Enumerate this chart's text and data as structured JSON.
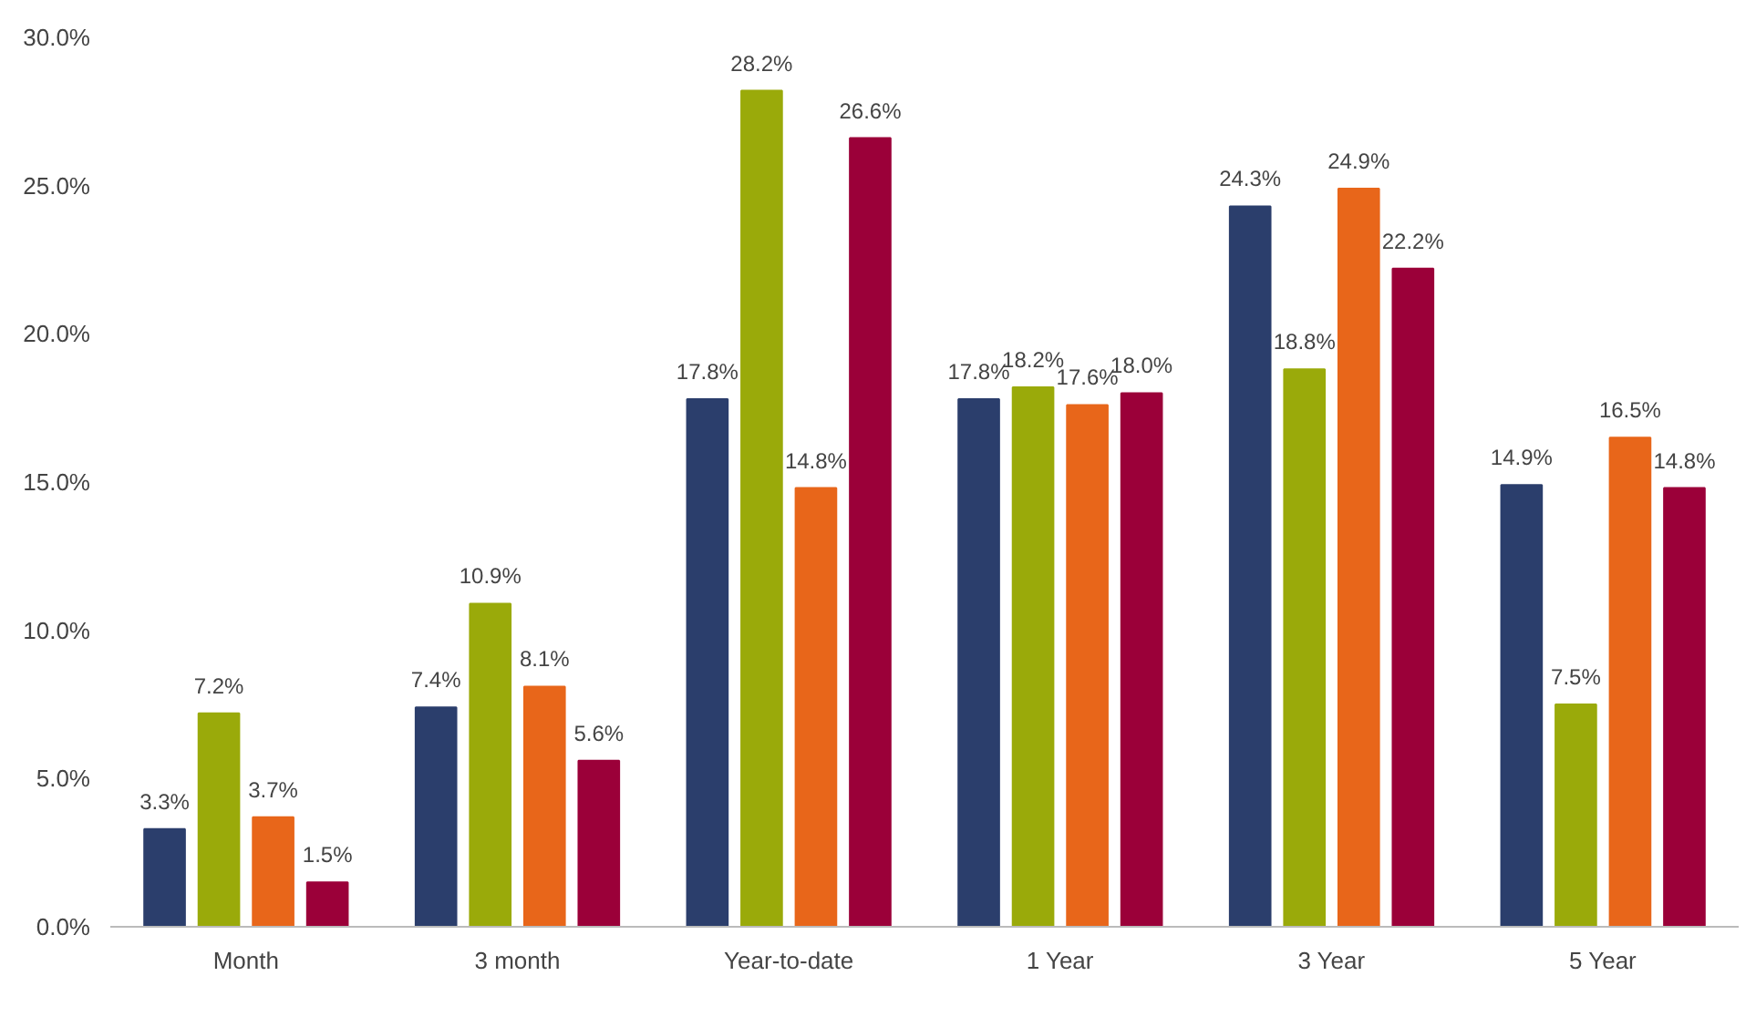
{
  "chart_data": {
    "type": "bar",
    "categories": [
      "Month",
      "3 month",
      "Year-to-date",
      "1 Year",
      "3 Year",
      "5 Year"
    ],
    "series": [
      {
        "color": "#2b3e6c",
        "values": [
          3.3,
          7.4,
          17.8,
          17.8,
          24.3,
          14.9
        ],
        "value_labels": [
          "3.3%",
          "7.4%",
          "17.8%",
          "17.8%",
          "24.3%",
          "14.9%"
        ]
      },
      {
        "color": "#9aaa0a",
        "values": [
          7.2,
          10.9,
          28.2,
          18.2,
          18.8,
          7.5
        ],
        "value_labels": [
          "7.2%",
          "10.9%",
          "28.2%",
          "18.2%",
          "18.8%",
          "7.5%"
        ]
      },
      {
        "color": "#e8661a",
        "values": [
          3.7,
          8.1,
          14.8,
          17.6,
          24.9,
          16.5
        ],
        "value_labels": [
          "3.7%",
          "8.1%",
          "14.8%",
          "17.6%",
          "24.9%",
          "16.5%"
        ]
      },
      {
        "color": "#9b0039",
        "values": [
          1.5,
          5.6,
          26.6,
          18.0,
          22.2,
          14.8
        ],
        "value_labels": [
          "1.5%",
          "5.6%",
          "26.6%",
          "18.0%",
          "22.2%",
          "14.8%"
        ]
      }
    ],
    "ylim": [
      0,
      30
    ],
    "yticks": [
      {
        "value": 0,
        "label": "0.0%"
      },
      {
        "value": 5,
        "label": "5.0%"
      },
      {
        "value": 10,
        "label": "10.0%"
      },
      {
        "value": 15,
        "label": "15.0%"
      },
      {
        "value": 20,
        "label": "20.0%"
      },
      {
        "value": 25,
        "label": "25.0%"
      },
      {
        "value": 30,
        "label": "30.0%"
      }
    ],
    "grid": false
  }
}
